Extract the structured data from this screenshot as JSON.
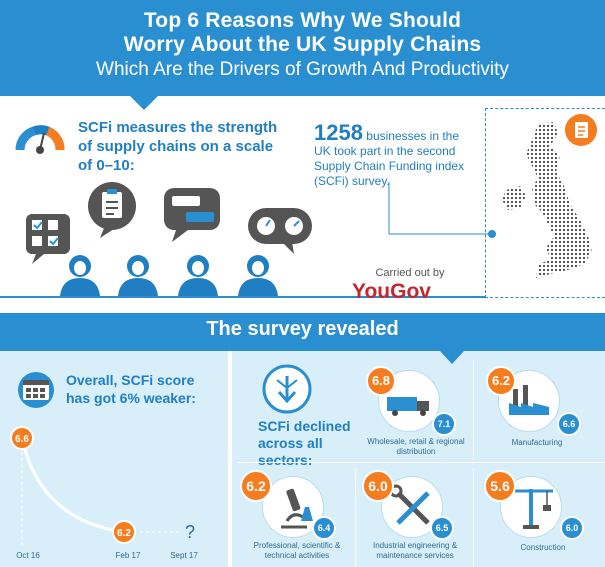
{
  "header": {
    "title_line1": "Top 6 Reasons Why We Should",
    "title_line2": "Worry About the UK Supply Chains",
    "subtitle": "Which Are the Drivers of Growth And Productivity"
  },
  "intro": {
    "scfi_text": "SCFi measures the strength of supply chains on a scale of 0–10:",
    "businesses_count": "1258",
    "businesses_text": "businesses in the UK took part in the second Supply Chain Funding index (SCFi) survey.",
    "carried_out_by": "Carried out by",
    "pollster": "YouGov"
  },
  "survey": {
    "title": "The survey revealed",
    "overall_text": "Overall, SCFi score has got 6% weaker:",
    "declined_text": "SCFi declined across all sectors:"
  },
  "chart_data": {
    "type": "line",
    "x": [
      "Oct 16",
      "Feb 17",
      "Sept 17"
    ],
    "values": [
      6.6,
      6.2,
      null
    ],
    "point_labels": [
      "6.6",
      "6.2",
      "?"
    ]
  },
  "sectors": [
    {
      "label": "Wholesale, retail & regional distribution",
      "new": "6.8",
      "old": "7.1"
    },
    {
      "label": "Manufacturing",
      "new": "6.2",
      "old": "6.6"
    },
    {
      "label": "Professional, scientific & technical activities",
      "new": "6.2",
      "old": "6.4"
    },
    {
      "label": "Industrial engineering & maintenance services",
      "new": "6.0",
      "old": "6.5"
    },
    {
      "label": "Construction",
      "new": "5.6",
      "old": "6.0"
    }
  ],
  "colors": {
    "primary_blue": "#2a8fd0",
    "accent_orange": "#f57d20",
    "light_blue_bg": "#d8eef9",
    "yougov_red": "#c6262f"
  }
}
